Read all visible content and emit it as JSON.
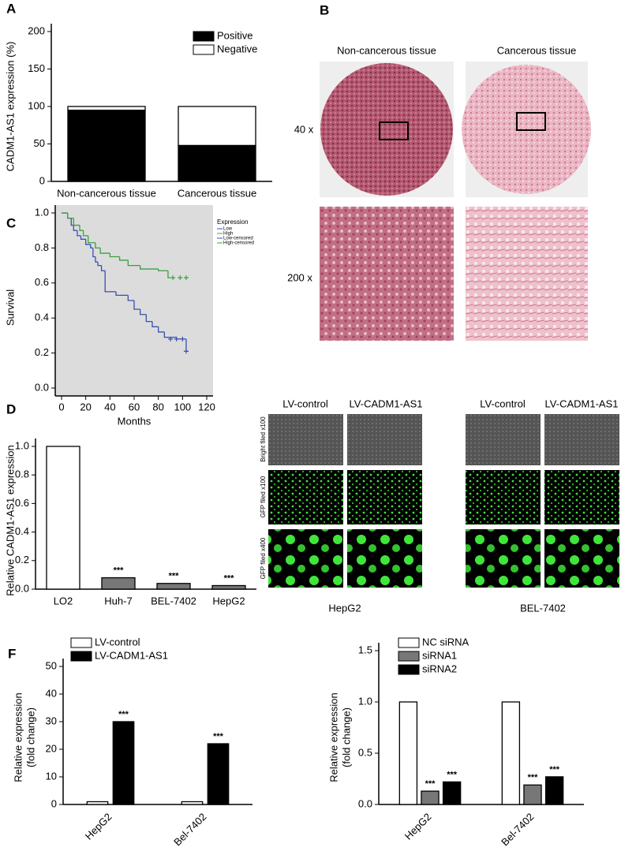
{
  "chart_data": [
    {
      "type": "bar",
      "panel": "A",
      "stacked": true,
      "ylabel": "CADM1-AS1 expression (%)",
      "categories": [
        "Non-cancerous tissue",
        "Cancerous tissue"
      ],
      "series": [
        {
          "name": "Positive",
          "color": "#000000",
          "values": [
            95,
            48
          ]
        },
        {
          "name": "Negative",
          "color": "#ffffff",
          "values": [
            5,
            52
          ]
        }
      ],
      "ylim": [
        0,
        200
      ],
      "yticks": [
        0,
        50,
        100,
        150,
        200
      ]
    },
    {
      "type": "line",
      "panel": "C",
      "ylabel": "Survival",
      "xlabel": "Months",
      "legend_title": "Expression",
      "series": [
        {
          "name": "Low",
          "color": "#3a4fb0",
          "x": [
            0,
            5,
            8,
            10,
            13,
            16,
            20,
            24,
            26,
            28,
            30,
            33,
            36,
            45,
            55,
            60,
            65,
            70,
            75,
            80,
            85,
            95,
            103
          ],
          "values": [
            1.0,
            0.97,
            0.93,
            0.9,
            0.87,
            0.85,
            0.82,
            0.8,
            0.75,
            0.72,
            0.7,
            0.67,
            0.55,
            0.53,
            0.5,
            0.45,
            0.42,
            0.38,
            0.35,
            0.32,
            0.29,
            0.28,
            0.21
          ]
        },
        {
          "name": "High",
          "color": "#3aa040",
          "x": [
            0,
            5,
            10,
            15,
            18,
            22,
            28,
            32,
            40,
            48,
            55,
            65,
            80,
            88
          ],
          "values": [
            1.0,
            0.97,
            0.93,
            0.9,
            0.87,
            0.83,
            0.8,
            0.77,
            0.75,
            0.73,
            0.7,
            0.68,
            0.67,
            0.63
          ]
        },
        {
          "name": "Low-censored",
          "color": "#3a4fb0",
          "marker": "plus",
          "x": [
            90,
            95,
            100,
            103
          ],
          "values": [
            0.28,
            0.28,
            0.28,
            0.21
          ]
        },
        {
          "name": "High-censored",
          "color": "#3aa040",
          "marker": "plus",
          "x": [
            92,
            98,
            103
          ],
          "values": [
            0.63,
            0.63,
            0.63
          ]
        }
      ],
      "xlim": [
        0,
        120
      ],
      "xticks": [
        0,
        20,
        40,
        60,
        80,
        100,
        120
      ],
      "ylim": [
        0,
        1
      ],
      "yticks": [
        {
          "value": 0,
          "label": "0.0"
        },
        0.2,
        0.4,
        0.6,
        0.8,
        {
          "value": 1,
          "label": "1.0"
        }
      ],
      "background": "#dcdcdc"
    },
    {
      "type": "bar",
      "panel": "D",
      "ylabel": "Relative CADM1-AS1 expression",
      "categories": [
        "LO2",
        "Huh-7",
        "BEL-7402",
        "HepG2"
      ],
      "values": [
        1.0,
        0.08,
        0.04,
        0.025
      ],
      "colors": [
        "#ffffff",
        "#777777",
        "#777777",
        "#777777"
      ],
      "significance": [
        null,
        "***",
        "***",
        "***"
      ],
      "ylim": [
        0,
        1
      ],
      "yticks": [
        {
          "value": 0,
          "label": "0.0"
        },
        0.2,
        0.4,
        0.6,
        0.8,
        {
          "value": 1,
          "label": "1.0"
        }
      ]
    },
    {
      "type": "bar",
      "panel": "F",
      "ylabel": [
        "Relative expression",
        "(fold change)"
      ],
      "categories": [
        "HepG2",
        "Bel-7402"
      ],
      "series": [
        {
          "name": "LV-control",
          "color": "#ffffff",
          "values": [
            1,
            1
          ]
        },
        {
          "name": "LV-CADM1-AS1",
          "color": "#000000",
          "values": [
            30,
            22
          ],
          "significance": [
            "***",
            "***"
          ]
        }
      ],
      "ylim": [
        0,
        50
      ],
      "yticks": [
        0,
        10,
        20,
        30,
        40,
        50
      ]
    },
    {
      "type": "bar",
      "ylabel": [
        "Relative expression",
        "(fold change)"
      ],
      "categories": [
        "HepG2",
        "Bel-7402"
      ],
      "series": [
        {
          "name": "NC siRNA",
          "color": "#ffffff",
          "values": [
            1,
            1
          ]
        },
        {
          "name": "siRNA1",
          "color": "#777777",
          "values": [
            0.13,
            0.19
          ],
          "significance": [
            "***",
            "***"
          ]
        },
        {
          "name": "siRNA2",
          "color": "#000000",
          "values": [
            0.22,
            0.27
          ],
          "significance": [
            "***",
            "***"
          ]
        }
      ],
      "ylim": [
        0,
        1.5
      ],
      "yticks": [
        {
          "value": 0,
          "label": "0.0"
        },
        0.5,
        {
          "value": 1,
          "label": "1.0"
        },
        1.5
      ]
    }
  ],
  "tissue_images": {
    "panel": "B",
    "columns": [
      "Non-cancerous tissue",
      "Cancerous tissue"
    ],
    "rows": [
      "40 x",
      "200 x"
    ]
  },
  "fluorescence_images": {
    "columns": [
      "LV-control",
      "LV-CADM1-AS1"
    ],
    "rows": [
      "Bright filed x100",
      "GFP filed x100",
      "GFP filed x400"
    ],
    "cell_lines": [
      "HepG2",
      "BEL-7402"
    ]
  }
}
